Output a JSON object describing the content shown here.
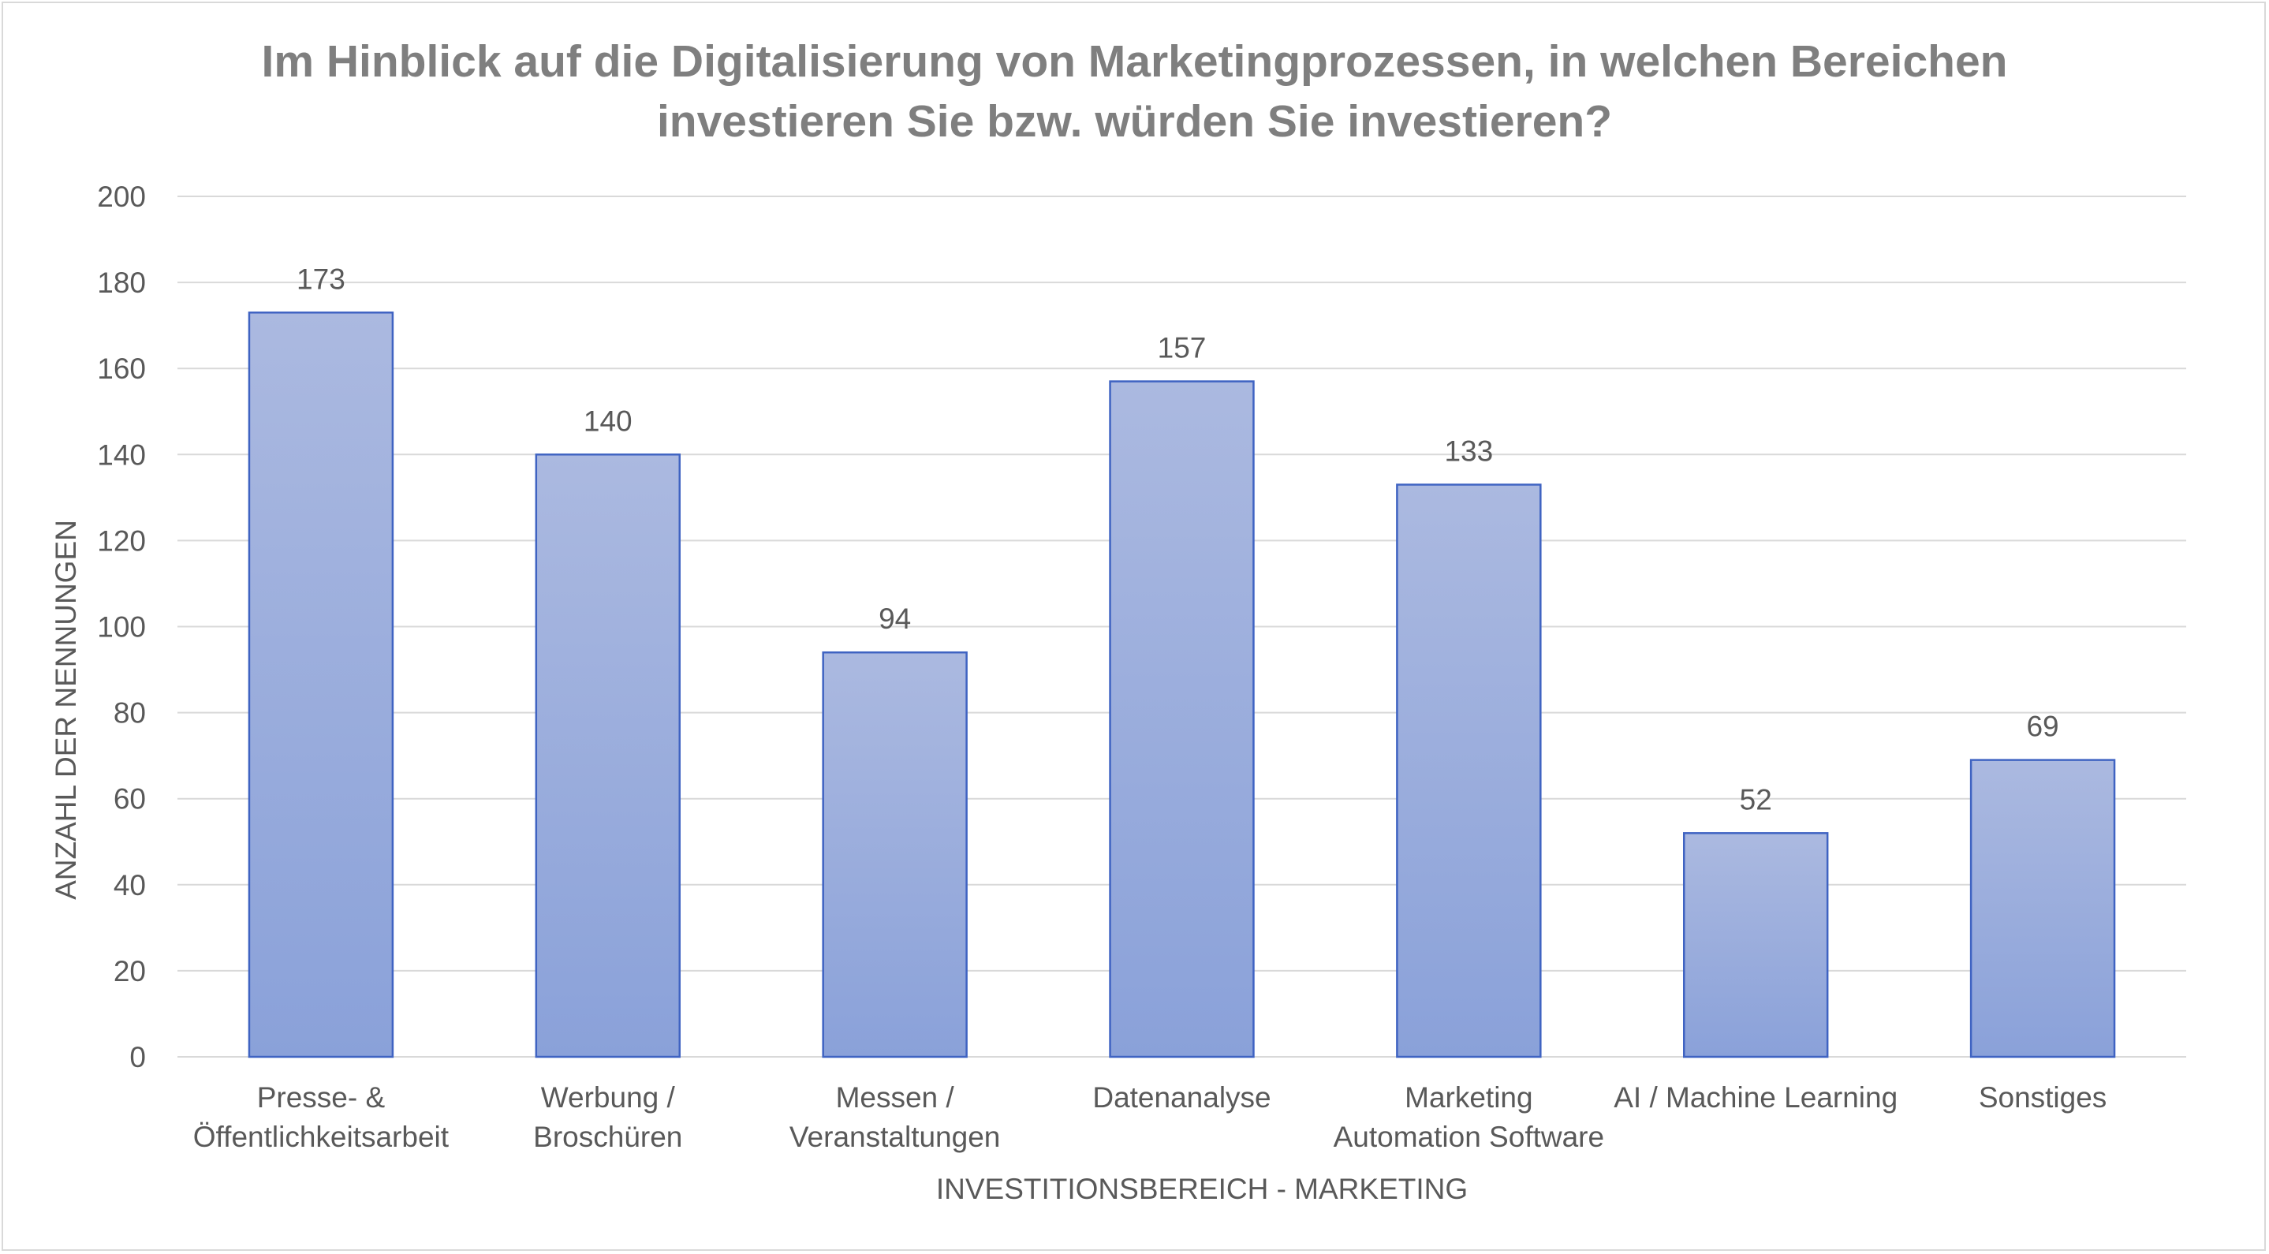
{
  "chart_data": {
    "type": "bar",
    "title_lines": [
      "Im Hinblick auf die Digitalisierung von Marketingprozessen, in welchen Bereichen",
      "investieren Sie bzw. würden Sie investieren?"
    ],
    "categories": [
      [
        "Presse- &",
        "Öffentlichkeitsarbeit"
      ],
      [
        "Werbung /",
        "Broschüren"
      ],
      [
        "Messen /",
        "Veranstaltungen"
      ],
      [
        "Datenanalyse"
      ],
      [
        "Marketing",
        "Automation Software"
      ],
      [
        "AI / Machine Learning"
      ],
      [
        "Sonstiges"
      ]
    ],
    "values": [
      173,
      140,
      94,
      157,
      133,
      52,
      69
    ],
    "xlabel": "INVESTITIONSBEREICH  - MARKETING",
    "ylabel": "ANZAHL DER NENNUNGEN",
    "ylim": [
      0,
      200
    ],
    "yticks": [
      0,
      20,
      40,
      60,
      80,
      100,
      120,
      140,
      160,
      180,
      200
    ],
    "grid": true,
    "legend": "none",
    "colors": {
      "bar_top": "#abb9e0",
      "bar_bottom": "#8aa1d9",
      "bar_border": "#3f63c2",
      "grid": "#d9d9d9",
      "text": "#595959",
      "title": "#7f7f7f"
    }
  }
}
